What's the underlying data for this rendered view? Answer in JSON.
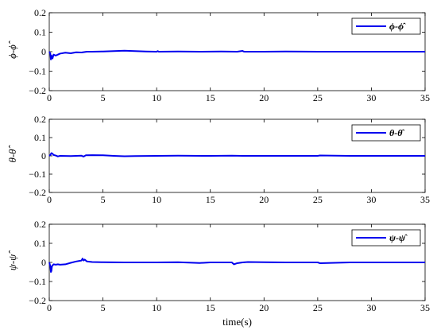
{
  "chart_data": [
    {
      "type": "line",
      "ylabel": "ϕ-ϕ̂",
      "xlim": [
        0,
        35
      ],
      "ylim": [
        -0.2,
        0.2
      ],
      "xticks": [
        0,
        5,
        10,
        15,
        20,
        25,
        30,
        35
      ],
      "yticks": [
        -0.2,
        -0.1,
        0,
        0.1,
        0.2
      ],
      "ytick_labels": [
        "−0.2",
        "−0.1",
        "0",
        "0.1",
        "0.2"
      ],
      "xtick_labels": [
        "0",
        "5",
        "10",
        "15",
        "20",
        "25",
        "30",
        "35"
      ],
      "legend": "top-right",
      "series": [
        {
          "name": "ϕ-ϕ̂",
          "color": "#0000ee",
          "x": [
            0,
            0.1,
            0.15,
            0.2,
            0.3,
            0.4,
            0.6,
            0.8,
            1.0,
            1.5,
            2.0,
            2.5,
            3.0,
            3.5,
            4.0,
            5.0,
            6.0,
            7.0,
            8.0,
            9.0,
            10.0,
            10.1,
            10.2,
            12.0,
            14.0,
            16.0,
            17.5,
            18.0,
            18.1,
            18.2,
            20.0,
            22.0,
            25.0,
            28.0,
            30.0,
            35.0
          ],
          "y": [
            0,
            -0.01,
            -0.04,
            -0.02,
            -0.035,
            -0.015,
            -0.02,
            -0.015,
            -0.01,
            -0.005,
            -0.008,
            -0.003,
            -0.004,
            0.0,
            0.0,
            0.001,
            0.003,
            0.005,
            0.003,
            0.001,
            0.0,
            0.003,
            0.0,
            0.001,
            0.0,
            0.001,
            0.0,
            0.004,
            0.001,
            0.0,
            0.0,
            0.001,
            0.0,
            0.0,
            0.0,
            0.0
          ]
        }
      ]
    },
    {
      "type": "line",
      "ylabel": "θ-θ̂",
      "xlim": [
        0,
        35
      ],
      "ylim": [
        -0.2,
        0.2
      ],
      "xticks": [
        0,
        5,
        10,
        15,
        20,
        25,
        30,
        35
      ],
      "yticks": [
        -0.2,
        -0.1,
        0,
        0.1,
        0.2
      ],
      "ytick_labels": [
        "−0.2",
        "−0.1",
        "0",
        "0.1",
        "0.2"
      ],
      "xtick_labels": [
        "0",
        "5",
        "10",
        "15",
        "20",
        "25",
        "30",
        "35"
      ],
      "legend": "top-right",
      "series": [
        {
          "name": "θ-θ̂",
          "color": "#0000ee",
          "x": [
            0,
            0.1,
            0.2,
            0.3,
            0.4,
            0.6,
            0.8,
            1.0,
            2.0,
            3.0,
            3.2,
            3.4,
            4.0,
            5.0,
            6.0,
            7.0,
            8.0,
            10.0,
            12.0,
            15.0,
            17.0,
            18.0,
            20.0,
            25.0,
            25.2,
            28.0,
            30.0,
            35.0
          ],
          "y": [
            0,
            0.005,
            0.015,
            0.012,
            0.005,
            0.002,
            -0.003,
            0.0,
            -0.001,
            0.001,
            -0.004,
            0.003,
            0.004,
            0.003,
            0.0,
            -0.002,
            -0.001,
            0.0,
            0.001,
            0.0,
            0.001,
            0.0,
            0.0,
            0.0,
            0.002,
            0.0,
            0.0,
            0.0
          ]
        }
      ]
    },
    {
      "type": "line",
      "ylabel": "ψ-ψ̂",
      "xlabel": "time(s)",
      "xlim": [
        0,
        35
      ],
      "ylim": [
        -0.2,
        0.2
      ],
      "xticks": [
        0,
        5,
        10,
        15,
        20,
        25,
        30,
        35
      ],
      "yticks": [
        -0.2,
        -0.1,
        0,
        0.1,
        0.2
      ],
      "ytick_labels": [
        "−0.2",
        "−0.1",
        "0",
        "0.1",
        "0.2"
      ],
      "xtick_labels": [
        "0",
        "5",
        "10",
        "15",
        "20",
        "25",
        "30",
        "35"
      ],
      "legend": "top-right",
      "series": [
        {
          "name": "ψ-ψ̂",
          "color": "#0000ee",
          "x": [
            0,
            0.1,
            0.15,
            0.2,
            0.25,
            0.4,
            0.6,
            0.8,
            1.0,
            1.5,
            2.0,
            2.5,
            3.0,
            3.1,
            3.2,
            3.3,
            3.5,
            4.0,
            5.0,
            7.0,
            10.0,
            12.0,
            14.0,
            15.0,
            16.0,
            17.0,
            17.2,
            17.5,
            18.0,
            18.5,
            20.0,
            22.0,
            25.0,
            25.2,
            28.0,
            30.0,
            35.0
          ],
          "y": [
            0,
            -0.02,
            -0.05,
            -0.045,
            -0.02,
            -0.01,
            -0.012,
            -0.01,
            -0.012,
            -0.01,
            -0.002,
            0.005,
            0.01,
            0.02,
            0.01,
            0.015,
            0.005,
            0.002,
            0.001,
            0.0,
            0.0,
            0.001,
            -0.003,
            0.0,
            0.0,
            0.0,
            -0.01,
            -0.004,
            0.0,
            0.002,
            0.001,
            0.0,
            0.0,
            -0.004,
            0.0,
            0.0,
            0.0
          ]
        }
      ]
    }
  ]
}
